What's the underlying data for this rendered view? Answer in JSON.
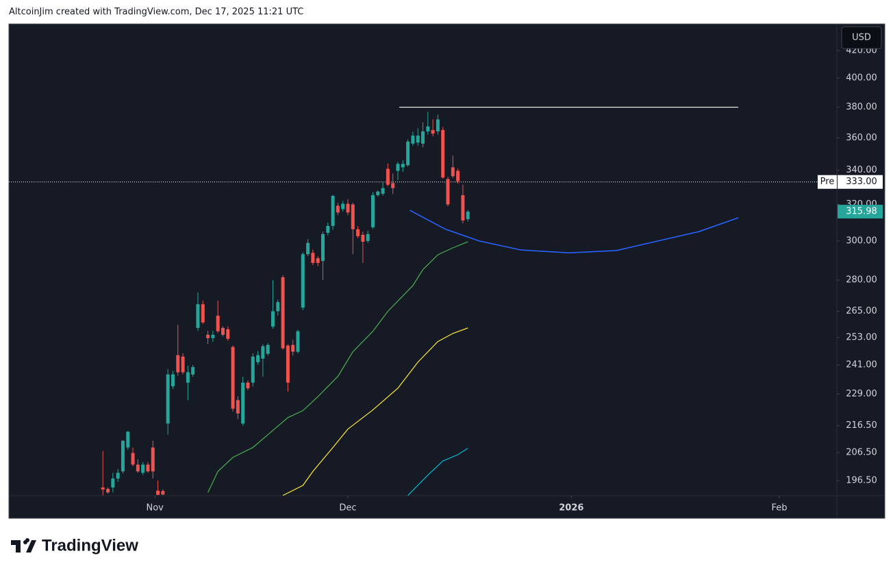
{
  "header": "AltcoinJim created with TradingView.com, Dec 17, 2025 11:21 UTC",
  "footer": "TradingView",
  "chart_data": {
    "type": "candlestick",
    "log_scale": true,
    "currency": "USD",
    "up_color": "#26a69a",
    "down_color": "#ef5350",
    "xlim": [
      -18.8,
      146.8
    ],
    "xticks": [
      {
        "value": 10.4,
        "label": "Nov"
      },
      {
        "value": 49.0,
        "label": "Dec"
      },
      {
        "value": 93.7,
        "label": "2026"
      },
      {
        "value": 135.3,
        "label": "Feb"
      }
    ],
    "ylim": [
      191.3,
      440.2
    ],
    "yticks": [
      {
        "value": 196.5,
        "label": "196.50"
      },
      {
        "value": 206.5,
        "label": "206.50"
      },
      {
        "value": 216.5,
        "label": "216.50"
      },
      {
        "value": 229,
        "label": "229.00"
      },
      {
        "value": 241,
        "label": "241.00"
      },
      {
        "value": 253,
        "label": "253.00"
      },
      {
        "value": 265,
        "label": "265.00"
      },
      {
        "value": 280,
        "label": "280.00"
      },
      {
        "value": 300,
        "label": "300.00"
      },
      {
        "value": 320,
        "label": "320.00"
      },
      {
        "value": 340,
        "label": "340.00"
      },
      {
        "value": 360,
        "label": "360.00"
      },
      {
        "value": 380,
        "label": "380.00"
      },
      {
        "value": 400,
        "label": "400.00"
      },
      {
        "value": 420,
        "label": "420.00"
      }
    ],
    "x": [
      0,
      1,
      2,
      3,
      4,
      5,
      6,
      7,
      8,
      9,
      10,
      11,
      12,
      13,
      14,
      15,
      16,
      17,
      18,
      19,
      20,
      21,
      22,
      23,
      24,
      25,
      26,
      27,
      28,
      29,
      30,
      31,
      32,
      33,
      34,
      35,
      36,
      37,
      38,
      39,
      40,
      41,
      42,
      43,
      44,
      45,
      46,
      47,
      48,
      49,
      50,
      51,
      52,
      53,
      54,
      55,
      56,
      57,
      58,
      59,
      60,
      61,
      62,
      63,
      64,
      65,
      66,
      67,
      68,
      69,
      70,
      71,
      72,
      73
    ],
    "open": [
      194.1,
      193.6,
      194.1,
      197.2,
      199.7,
      208.3,
      206.3,
      202.1,
      199.2,
      202.1,
      208.3,
      193,
      192.9,
      217.3,
      232.1,
      245.2,
      244.6,
      233.6,
      237,
      257.3,
      268.3,
      254.2,
      252.7,
      262.9,
      257.3,
      256.7,
      248.8,
      226.5,
      217.3,
      233.6,
      233.6,
      242.2,
      243.7,
      245.8,
      257.9,
      265,
      281.4,
      249.4,
      249.7,
      246.7,
      266.7,
      293.1,
      293.8,
      291,
      289.6,
      304.4,
      308.1,
      319.3,
      317.4,
      320.4,
      320,
      306.3,
      303.3,
      300,
      307.4,
      325.3,
      326.1,
      340.8,
      332.3,
      339.6,
      341.7,
      343,
      356.3,
      357,
      356.3,
      364.1,
      365,
      364.1,
      365,
      334.7,
      341.7,
      339.6,
      325.3,
      311.8
    ],
    "high": [
      207,
      194.1,
      199.2,
      200.5,
      211,
      214.5,
      208.3,
      204,
      203,
      203,
      210.8,
      196.5,
      193.5,
      239.3,
      238.5,
      258.8,
      246,
      240.7,
      241,
      274,
      270,
      256,
      256,
      270,
      258,
      258,
      249.5,
      228,
      236,
      234.5,
      246,
      247,
      250,
      250.5,
      280,
      270.5,
      282.4,
      250,
      252,
      256.5,
      294,
      301,
      295.5,
      292,
      305,
      310,
      325.5,
      321,
      322,
      323,
      321,
      308,
      305,
      305.5,
      327,
      328,
      333,
      344,
      338,
      345,
      346,
      359,
      364,
      366,
      370,
      376.9,
      372,
      375.1,
      367,
      336,
      348.8,
      341,
      331.4,
      317
    ],
    "low": [
      191.4,
      192,
      192.4,
      196,
      199,
      207.5,
      201.5,
      199.2,
      198.5,
      199.2,
      197.2,
      191.5,
      191.5,
      213.1,
      231,
      236.5,
      237,
      226.5,
      236,
      256,
      259,
      250,
      251,
      255,
      253.5,
      251.5,
      222,
      219,
      216.5,
      230.5,
      232,
      241,
      236,
      245,
      257,
      263,
      247.5,
      229.9,
      245,
      246,
      265.5,
      292,
      287.5,
      287,
      280,
      303,
      306,
      314,
      316,
      314,
      293.1,
      301.5,
      288.6,
      299,
      306.5,
      324.5,
      325,
      330.5,
      326,
      334,
      339,
      342,
      355,
      355,
      354,
      362,
      361,
      362,
      335,
      319,
      335.5,
      332,
      309.5,
      310.5
    ],
    "close": [
      193.4,
      192.4,
      197.2,
      199.2,
      210.8,
      214.2,
      202.1,
      199.7,
      202.1,
      199.7,
      199.7,
      191.6,
      191.7,
      237,
      237,
      237.9,
      237.9,
      237.9,
      240.1,
      268.3,
      259.8,
      252.7,
      254.2,
      255.8,
      254.2,
      252.4,
      223.1,
      221.2,
      233.6,
      231.3,
      244.6,
      245.2,
      249.1,
      249.7,
      265,
      269.3,
      248.2,
      233.6,
      246.7,
      255.8,
      293.1,
      299,
      288.6,
      288.6,
      303.7,
      308.1,
      324.9,
      315.5,
      320.4,
      315.5,
      306.3,
      302.6,
      299.6,
      303.7,
      325.3,
      327.4,
      329.4,
      331.4,
      329.4,
      343.8,
      343.8,
      357.6,
      361.4,
      361.4,
      364.1,
      367.3,
      362.7,
      371.9,
      335.6,
      320,
      336.4,
      333.5,
      311.1,
      315.98
    ],
    "series": [
      {
        "color": "#4caf50",
        "x": [
          21,
          23,
          26,
          30,
          34,
          37,
          40,
          43,
          47,
          50,
          54,
          57,
          62,
          64,
          67,
          70,
          73
        ],
        "values": [
          192.4,
          199.7,
          204.7,
          208.3,
          214.7,
          219.6,
          222.3,
          227.9,
          236.2,
          246.7,
          255.8,
          265,
          277.3,
          285.2,
          292.8,
          296.4,
          299.6
        ]
      },
      {
        "color": "#ffeb3b",
        "x": [
          36,
          40,
          42,
          46,
          49,
          54,
          59,
          63,
          67,
          70,
          73
        ],
        "values": [
          191.4,
          194.8,
          199.7,
          208.3,
          215.2,
          222.6,
          231.3,
          242.2,
          251.2,
          254.8,
          257.3
        ]
      },
      {
        "color": "#00bcd4",
        "x": [
          61,
          65,
          68,
          71,
          73
        ],
        "values": [
          191.4,
          198.4,
          203.4,
          205.7,
          208
        ]
      },
      {
        "color": "#2962ff",
        "x": [
          61.4,
          68.5,
          75.3,
          83.6,
          93.2,
          102.7,
          111,
          119.2,
          127.1
        ],
        "values": [
          316.7,
          306.3,
          300,
          295.3,
          293.8,
          295,
          300,
          305,
          312.6
        ]
      }
    ],
    "hlines": [
      {
        "value": 380,
        "x": [
          59.3,
          127.1
        ],
        "color": "#ffffff"
      }
    ],
    "price_line": {
      "name": "Pre",
      "value": 333,
      "label": "333.00"
    },
    "last_price": {
      "value": 315.98,
      "label": "315.98"
    }
  }
}
